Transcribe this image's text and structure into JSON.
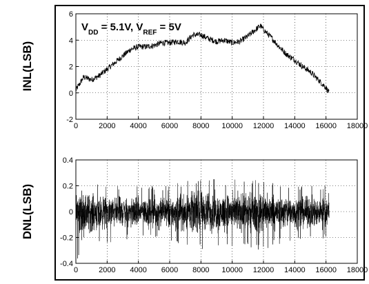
{
  "chart_data": [
    {
      "type": "line",
      "ylabel": "INL(LSB)",
      "annotation": {
        "parts": [
          {
            "text": "V",
            "sub": false
          },
          {
            "text": "DD",
            "sub": true
          },
          {
            "text": " = 5.1V, V",
            "sub": false
          },
          {
            "text": "REF",
            "sub": true
          },
          {
            "text": " = 5V",
            "sub": false
          }
        ]
      },
      "xlim": [
        0,
        18000
      ],
      "ylim": [
        -2,
        6
      ],
      "xticks": [
        "0",
        "2000",
        "4000",
        "6000",
        "8000",
        "10000",
        "12000",
        "14000",
        "16000",
        "18000"
      ],
      "yticks": [
        "-2",
        "0",
        "2",
        "4",
        "6"
      ],
      "grid": true,
      "series": [
        {
          "x": [
            0,
            500,
            1000,
            1500,
            2000,
            2500,
            3000,
            3500,
            4000,
            4500,
            5000,
            5500,
            6000,
            6500,
            7000,
            7500,
            8000,
            8500,
            9000,
            9500,
            10000,
            10500,
            11000,
            11500,
            11800,
            12000,
            12500,
            13000,
            13500,
            14000,
            14500,
            15000,
            15500,
            16000,
            16200
          ],
          "y": [
            0.2,
            1.2,
            1.0,
            1.3,
            1.8,
            2.3,
            2.8,
            3.3,
            3.5,
            3.5,
            3.6,
            3.8,
            3.8,
            3.9,
            3.8,
            4.4,
            4.4,
            4.1,
            3.9,
            4.0,
            3.8,
            3.9,
            4.3,
            4.8,
            5.1,
            4.8,
            4.2,
            3.5,
            2.9,
            2.5,
            2.0,
            1.6,
            1.0,
            0.4,
            0.0
          ]
        }
      ]
    },
    {
      "type": "line",
      "ylabel": "DNL(LSB)",
      "xlim": [
        0,
        18000
      ],
      "ylim": [
        -0.4,
        0.4
      ],
      "xticks": [
        "0",
        "2000",
        "4000",
        "6000",
        "8000",
        "10000",
        "12000",
        "14000",
        "16000",
        "18000"
      ],
      "yticks": [
        "-0.4",
        "-0.2",
        "0",
        "0.2",
        "0.4"
      ],
      "grid": true,
      "series": [
        {
          "x_range": [
            0,
            16200
          ],
          "envelope_x": [
            0,
            1000,
            2000,
            3000,
            4000,
            5000,
            6000,
            7000,
            8000,
            9000,
            10000,
            11000,
            12000,
            13000,
            14000,
            15000,
            16000,
            16200
          ],
          "envelope_upper": [
            0.3,
            0.25,
            0.2,
            0.2,
            0.2,
            0.2,
            0.2,
            0.25,
            0.28,
            0.25,
            0.25,
            0.25,
            0.25,
            0.22,
            0.22,
            0.2,
            0.2,
            0.15
          ],
          "envelope_lower": [
            -0.38,
            -0.28,
            -0.25,
            -0.22,
            -0.22,
            -0.22,
            -0.25,
            -0.28,
            -0.3,
            -0.28,
            -0.28,
            -0.28,
            -0.3,
            -0.25,
            -0.25,
            -0.22,
            -0.22,
            -0.15
          ]
        }
      ]
    }
  ]
}
